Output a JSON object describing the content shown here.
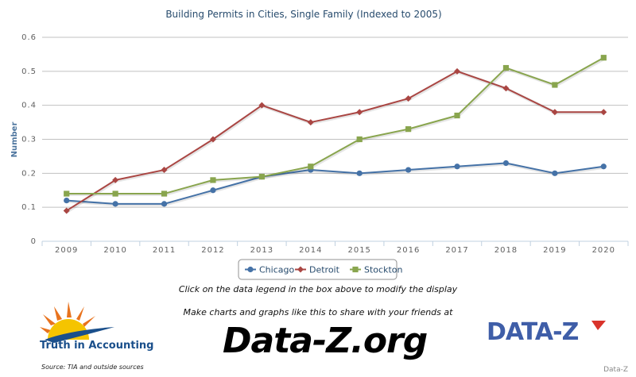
{
  "chart_data": {
    "type": "line",
    "title": "Building Permits in Cities, Single Family (Indexed to 2005)",
    "xlabel": "",
    "ylabel": "Number",
    "categories": [
      "2009",
      "2010",
      "2011",
      "2012",
      "2013",
      "2014",
      "2015",
      "2016",
      "2017",
      "2018",
      "2019",
      "2020"
    ],
    "ylim": [
      0,
      0.6
    ],
    "yticks": [
      "0",
      "0.1",
      "0.2",
      "0.3",
      "0.4",
      "0.5",
      "0.6"
    ],
    "grid": true,
    "legend": "bottom-center",
    "series": [
      {
        "name": "Chicago",
        "color": "#4572a7",
        "marker": "circle",
        "values": [
          0.12,
          0.11,
          0.11,
          0.15,
          0.19,
          0.21,
          0.2,
          0.21,
          0.22,
          0.23,
          0.2,
          0.22
        ]
      },
      {
        "name": "Detroit",
        "color": "#aa4643",
        "marker": "diamond",
        "values": [
          0.09,
          0.18,
          0.21,
          0.3,
          0.4,
          0.35,
          0.38,
          0.42,
          0.5,
          0.45,
          0.38,
          0.38
        ]
      },
      {
        "name": "Stockton",
        "color": "#89a54e",
        "marker": "square",
        "values": [
          0.14,
          0.14,
          0.14,
          0.18,
          0.19,
          0.22,
          0.3,
          0.33,
          0.37,
          0.51,
          0.46,
          0.54
        ]
      }
    ]
  },
  "notes": {
    "legend_hint": "Click on the data legend in the box above to modify the display",
    "share_text": "Make charts and graphs like this to share with your friends at",
    "site": "Data-Z.org"
  },
  "branding": {
    "tia_name": "Truth in Accounting",
    "source": "Source: TIA and outside sources",
    "dz_logo_text": "DATA-Z",
    "credit": "Data-Z"
  }
}
